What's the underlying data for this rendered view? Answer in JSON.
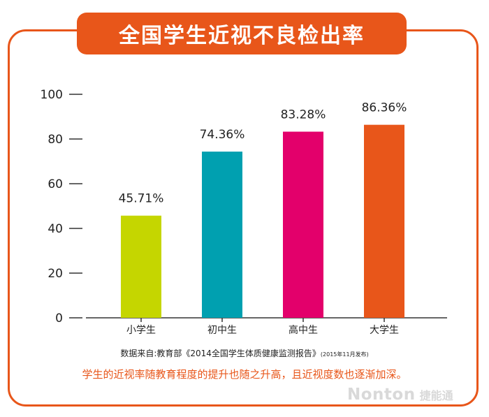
{
  "title": "全国学生近视不良检出率",
  "source": {
    "main": "数据来自:教育部《2014全国学生体质健康监测报告》",
    "note": "(2015年11月发布)"
  },
  "caption": "学生的近视率随教育程度的提升也随之升高，且近视度数也逐渐加深。",
  "logo": {
    "word": "Nonton",
    "cn": "捷能通"
  },
  "colors": {
    "accent": "#e8561a",
    "bars": [
      "#c5d600",
      "#00a0b0",
      "#e3006b",
      "#e8561a"
    ]
  },
  "chart_data": {
    "type": "bar",
    "categories": [
      "小学生",
      "初中生",
      "高中生",
      "大学生"
    ],
    "values": [
      45.71,
      74.36,
      83.28,
      86.36
    ],
    "value_labels": [
      "45.71%",
      "74.36%",
      "83.28%",
      "86.36%"
    ],
    "yticks": [
      0,
      20,
      40,
      60,
      80,
      100
    ],
    "ylim": [
      0,
      100
    ],
    "grid": false
  }
}
